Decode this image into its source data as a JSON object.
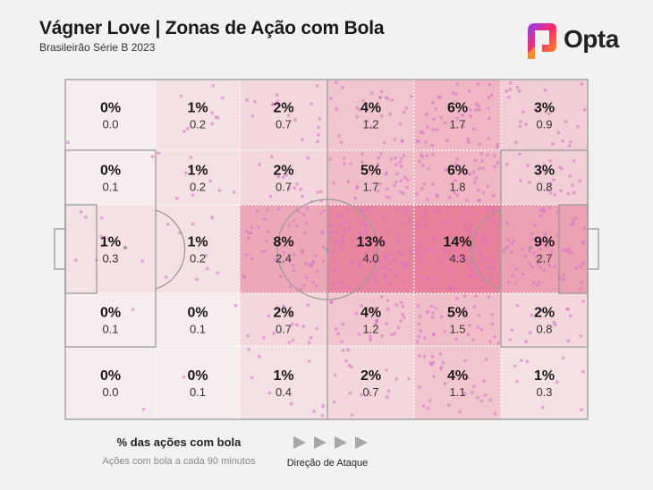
{
  "title": "Vágner Love | Zonas de Ação com Bola",
  "subtitle": "Brasileirão Série B 2023",
  "brand": {
    "name": "Opta",
    "icon": "opta-logo-icon",
    "colors": [
      "#ff2a6d",
      "#ff8c1a",
      "#8a3cff"
    ]
  },
  "legend": {
    "pct_label": "% das ações com bola",
    "rate_label": "Ações com bola a cada 90 minutos",
    "direction_label": "Direção de Ataque",
    "arrow_icon": "play-arrow-icon"
  },
  "chart_data": {
    "type": "heatmap",
    "title": "Vágner Love | Zonas de Ação com Bola",
    "attack_direction": "left-to-right",
    "columns": 6,
    "rows": 5,
    "cells": [
      [
        {
          "pct": "0%",
          "rate": "0.0",
          "v": 0
        },
        {
          "pct": "1%",
          "rate": "0.2",
          "v": 1
        },
        {
          "pct": "2%",
          "rate": "0.7",
          "v": 2
        },
        {
          "pct": "4%",
          "rate": "1.2",
          "v": 4
        },
        {
          "pct": "6%",
          "rate": "1.7",
          "v": 6
        },
        {
          "pct": "3%",
          "rate": "0.9",
          "v": 3
        }
      ],
      [
        {
          "pct": "0%",
          "rate": "0.1",
          "v": 0
        },
        {
          "pct": "1%",
          "rate": "0.2",
          "v": 1
        },
        {
          "pct": "2%",
          "rate": "0.7",
          "v": 2
        },
        {
          "pct": "5%",
          "rate": "1.7",
          "v": 5
        },
        {
          "pct": "6%",
          "rate": "1.8",
          "v": 6
        },
        {
          "pct": "3%",
          "rate": "0.8",
          "v": 3
        }
      ],
      [
        {
          "pct": "1%",
          "rate": "0.3",
          "v": 1
        },
        {
          "pct": "1%",
          "rate": "0.2",
          "v": 1
        },
        {
          "pct": "8%",
          "rate": "2.4",
          "v": 8
        },
        {
          "pct": "13%",
          "rate": "4.0",
          "v": 13
        },
        {
          "pct": "14%",
          "rate": "4.3",
          "v": 14
        },
        {
          "pct": "9%",
          "rate": "2.7",
          "v": 9
        }
      ],
      [
        {
          "pct": "0%",
          "rate": "0.1",
          "v": 0
        },
        {
          "pct": "0%",
          "rate": "0.1",
          "v": 0
        },
        {
          "pct": "2%",
          "rate": "0.7",
          "v": 2
        },
        {
          "pct": "4%",
          "rate": "1.2",
          "v": 4
        },
        {
          "pct": "5%",
          "rate": "1.5",
          "v": 5
        },
        {
          "pct": "2%",
          "rate": "0.8",
          "v": 2
        }
      ],
      [
        {
          "pct": "0%",
          "rate": "0.0",
          "v": 0
        },
        {
          "pct": "0%",
          "rate": "0.1",
          "v": 0
        },
        {
          "pct": "1%",
          "rate": "0.4",
          "v": 1
        },
        {
          "pct": "2%",
          "rate": "0.7",
          "v": 2
        },
        {
          "pct": "4%",
          "rate": "1.1",
          "v": 4
        },
        {
          "pct": "1%",
          "rate": "0.3",
          "v": 1
        }
      ]
    ],
    "color_low": "#f6eeee",
    "color_high": "#e8809a",
    "dot_color": "#d870c8"
  }
}
